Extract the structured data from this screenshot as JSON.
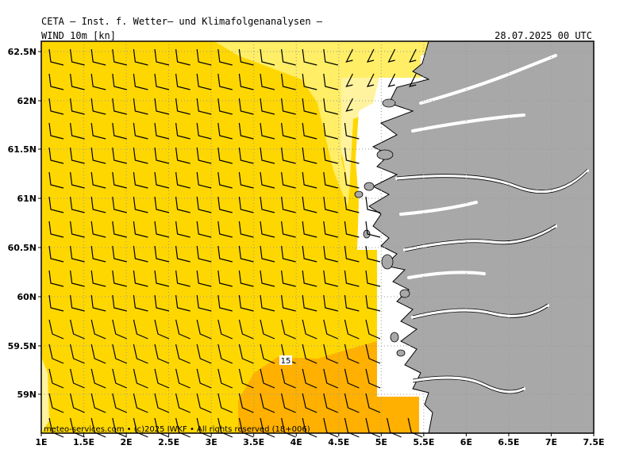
{
  "header": {
    "title": "CETA — Inst. f. Wetter— und Klimafolgenanalysen —",
    "product": "WIND 10m [kn]",
    "valid_time": "28.07.2025 00 UTC"
  },
  "axes": {
    "lon_labels": [
      "1E",
      "1.5E",
      "2E",
      "2.5E",
      "3E",
      "3.5E",
      "4E",
      "4.5E",
      "5E",
      "5.5E",
      "6E",
      "6.5E",
      "7E",
      "7.5E"
    ],
    "lat_labels": [
      "62.5N",
      "62N",
      "61.5N",
      "61N",
      "60.5N",
      "60N",
      "59.5N",
      "59N"
    ]
  },
  "map_data": {
    "lon_range": [
      1.0,
      7.5
    ],
    "lat_range": [
      58.6,
      62.6
    ],
    "grid": true,
    "colors": {
      "land": "#a8a8a8",
      "sea_white": "#ffffff",
      "wind_10_15": "#ffd700",
      "wind_5_10": "#ffee66",
      "wind_15_20": "#ffb000",
      "wind_light": "#fff3a0",
      "wind_green": "#b8f0b0",
      "barbs": "#000000",
      "grid_color": "#999999"
    },
    "contour_label": "15"
  },
  "footer": {
    "credit": "meteo-services.com • (c)2025 IWKF • All rights reserved (18+006)"
  }
}
